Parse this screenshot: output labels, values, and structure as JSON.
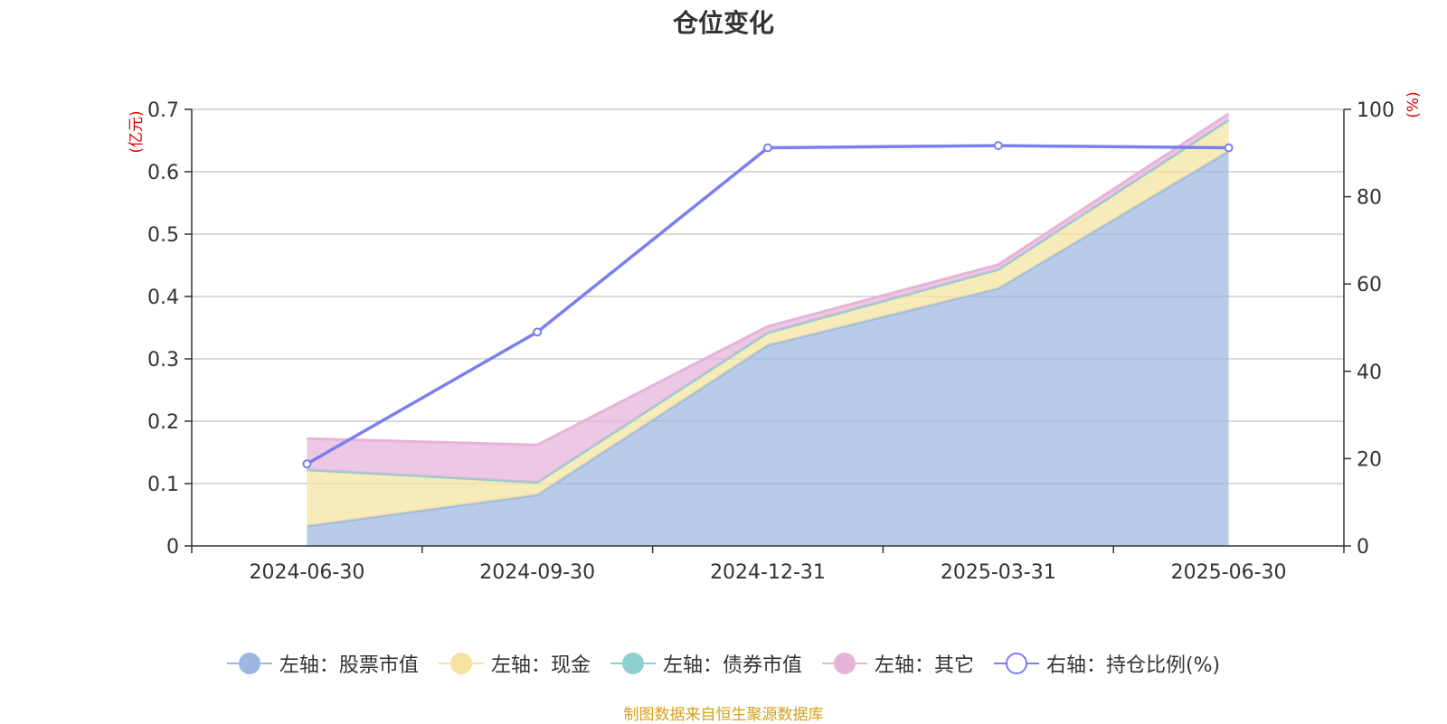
{
  "chart_data": {
    "type": "area",
    "title": "仓位变化",
    "categories": [
      "2024-06-30",
      "2024-09-30",
      "2024-12-31",
      "2025-03-31",
      "2025-06-30"
    ],
    "stacked": true,
    "y_left": {
      "unit_label": "(亿元)",
      "ylim": [
        0,
        0.7
      ],
      "ticks": [
        "0",
        "0.1",
        "0.2",
        "0.3",
        "0.4",
        "0.5",
        "0.6",
        "0.7"
      ]
    },
    "y_right": {
      "unit_label": "(%)",
      "ylim": [
        0,
        100
      ],
      "ticks": [
        "0",
        "20",
        "40",
        "60",
        "80",
        "100"
      ]
    },
    "grid": true,
    "legend_position": "bottom",
    "series": [
      {
        "name": "左轴：股票市值",
        "axis": "left",
        "type": "area",
        "color": "#9db7e0",
        "values": [
          0.032,
          0.082,
          0.322,
          0.413,
          0.633
        ]
      },
      {
        "name": "左轴：现金",
        "axis": "left",
        "type": "area",
        "color": "#f5e3a0",
        "values": [
          0.09,
          0.02,
          0.02,
          0.03,
          0.05
        ]
      },
      {
        "name": "左轴：债券市值",
        "axis": "left",
        "type": "area",
        "color": "#8ecfcf",
        "values": [
          0,
          0,
          0,
          0,
          0
        ]
      },
      {
        "name": "左轴：其它",
        "axis": "left",
        "type": "area",
        "color": "#e6b3d9",
        "values": [
          0.05,
          0.06,
          0.01,
          0.008,
          0.01
        ]
      },
      {
        "name": "右轴：持仓比例(%)",
        "axis": "right",
        "type": "line",
        "color": "#7b7ff0",
        "values": [
          18.8,
          49.0,
          91.2,
          91.7,
          91.2
        ]
      }
    ]
  },
  "source_note": "制图数据来自恒生聚源数据库"
}
